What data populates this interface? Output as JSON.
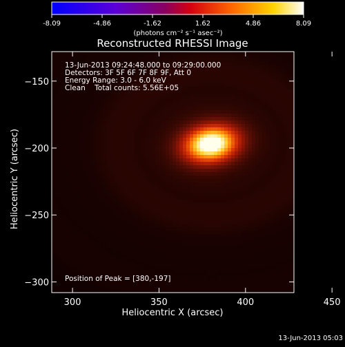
{
  "colorbar": {
    "ticks": [
      "-8.09",
      "-4.86",
      "-1.62",
      "1.62",
      "4.86",
      "8.09"
    ],
    "unit_label": "(photons cm⁻² s⁻¹ asec⁻²)",
    "colors": [
      "#0000ff",
      "#7f00ff",
      "#ff0000",
      "#ffffff"
    ]
  },
  "plot": {
    "title": "Reconstructed RHESSI Image",
    "info_lines": [
      "13-Jun-2013 09:24:48.000 to 09:29:00.000",
      "Detectors: 3F 5F 6F 7F 8F 9F, Att 0",
      "Energy Range: 3.0 - 6.0 keV",
      "Clean    Total counts: 5.56E+05"
    ],
    "peak_text": "Position of Peak = [380,-197]"
  },
  "footer": {
    "timestamp": "13-Jun-2013 05:03"
  },
  "chart_data": {
    "type": "heatmap",
    "title": "Reconstructed RHESSI Image",
    "xlabel": "Heliocentric X (arcsec)",
    "ylabel": "Heliocentric Y (arcsec)",
    "xlim": [
      288,
      428
    ],
    "ylim": [
      -308,
      -128
    ],
    "x_ticks": [
      300,
      350,
      400,
      450
    ],
    "y_ticks": [
      -150,
      -200,
      -250,
      -300
    ],
    "colorbar_range": [
      -8.09,
      8.09
    ],
    "peak": {
      "x": 380,
      "y": -197,
      "value": 8.09
    },
    "source_sigma_arcsec": [
      11,
      9
    ]
  }
}
